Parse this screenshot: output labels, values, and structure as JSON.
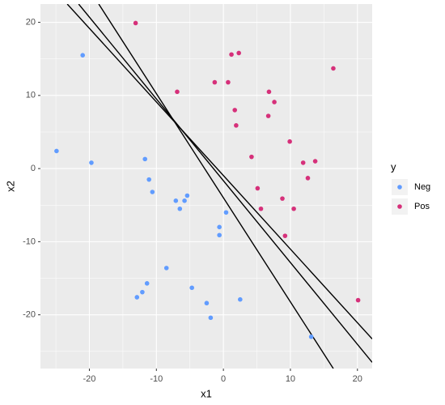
{
  "chart_data": {
    "type": "scatter",
    "x_label": "x1",
    "y_label": "x2",
    "legend_title": "y",
    "legend_position": "right",
    "grid": true,
    "xlim": [
      -27.3,
      22.2
    ],
    "ylim": [
      -27.35,
      22.5
    ],
    "xticks": [
      -20,
      -10,
      0,
      10,
      20
    ],
    "yticks": [
      -20,
      -10,
      0,
      10,
      20
    ],
    "series": [
      {
        "name": "Neg",
        "color": "#619CFF",
        "x": [
          -24.9,
          -21.0,
          -19.7,
          -11.7,
          -11.1,
          -10.6,
          -7.1,
          -6.5,
          -5.8,
          -5.4,
          0.4,
          -0.6,
          -0.6,
          -8.5,
          -11.4,
          -12.1,
          -12.9,
          -4.7,
          -2.5,
          -1.9,
          2.5,
          13.1
        ],
        "values": [
          2.4,
          15.5,
          0.8,
          1.3,
          -1.5,
          -3.2,
          -4.4,
          -5.5,
          -4.4,
          -3.7,
          -6.0,
          -8.0,
          -9.1,
          -13.6,
          -15.7,
          -16.9,
          -17.6,
          -16.3,
          -18.4,
          -20.4,
          -17.9,
          -23.0
        ]
      },
      {
        "name": "Pos",
        "color": "#D6307A",
        "x": [
          -13.1,
          -6.9,
          -1.3,
          0.7,
          1.2,
          2.3,
          1.7,
          1.9,
          6.8,
          7.6,
          6.7,
          16.4,
          4.2,
          9.9,
          11.9,
          13.7,
          12.6,
          5.1,
          5.6,
          8.8,
          10.5,
          9.2,
          20.1
        ],
        "values": [
          19.9,
          10.5,
          11.8,
          11.8,
          15.6,
          15.8,
          8.0,
          5.9,
          10.5,
          9.1,
          7.2,
          13.7,
          1.6,
          3.7,
          0.8,
          1.0,
          -1.3,
          -2.7,
          -5.5,
          -4.1,
          -5.5,
          -9.2,
          -18.0
        ]
      }
    ],
    "lines": [
      {
        "color": "#000000",
        "x": [
          -18.6,
          16.4
        ],
        "values": [
          22.5,
          -27.35
        ]
      },
      {
        "color": "#000000",
        "x": [
          -21.6,
          22.2
        ],
        "values": [
          22.5,
          -26.5
        ]
      },
      {
        "color": "#000000",
        "x": [
          -23.3,
          22.2
        ],
        "values": [
          22.5,
          -23.3
        ]
      }
    ]
  }
}
